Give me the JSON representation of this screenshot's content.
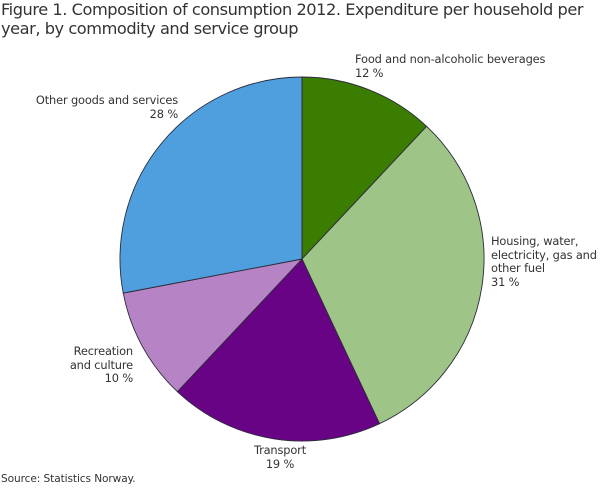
{
  "figure": {
    "title_line1": "Figure 1. Composition of consumption 2012. Expenditure per household per",
    "title_line2": "year, by commodity and service group",
    "source": "Source: Statistics Norway."
  },
  "labels": {
    "food": {
      "line1": "Food and non-alcoholic beverages",
      "value": "12 %"
    },
    "housing": {
      "line1": "Housing, water,",
      "line2": "electricity, gas and",
      "line3": "other fuel",
      "value": "31 %"
    },
    "transport": {
      "line1": "Transport",
      "value": "19 %"
    },
    "recreation": {
      "line1": "Recreation",
      "line2": "and culture",
      "value": "10 %"
    },
    "other": {
      "line1": "Other goods and services",
      "value": "28 %"
    }
  },
  "chart_data": {
    "type": "pie",
    "title": "Figure 1. Composition of consumption 2012. Expenditure per household per year, by commodity and service group",
    "unit": "%",
    "start_angle": "12 o'clock",
    "direction": "clockwise",
    "categories": [
      "Food and non-alcoholic beverages",
      "Housing, water, electricity, gas and other fuel",
      "Transport",
      "Recreation and culture",
      "Other goods and services"
    ],
    "values": [
      12,
      31,
      19,
      10,
      28
    ],
    "colors": [
      "#3a7d00",
      "#9ec587",
      "#690385",
      "#b684c5",
      "#4f9fdf"
    ],
    "legend": "none (direct slice labels)",
    "source": "Source: Statistics Norway."
  }
}
